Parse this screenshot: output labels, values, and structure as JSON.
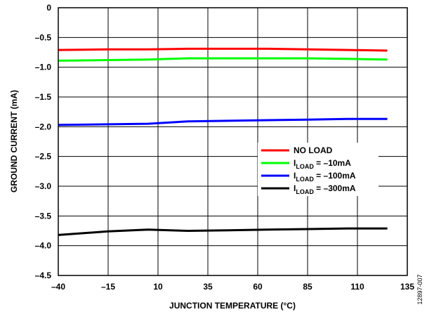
{
  "chart_data": {
    "type": "line",
    "xlabel": "JUNCTION TEMPERATURE (°C)",
    "ylabel": "GROUND CURRENT (mA)",
    "xlim": [
      -40,
      135
    ],
    "ylim": [
      -4.5,
      0
    ],
    "x_ticks": [
      -40,
      -15,
      10,
      35,
      60,
      85,
      110,
      135
    ],
    "x_tick_labels": [
      "–40",
      "–15",
      "10",
      "35",
      "60",
      "85",
      "110",
      "135"
    ],
    "y_ticks": [
      0,
      -0.5,
      -1.0,
      -1.5,
      -2.0,
      -2.5,
      -3.0,
      -3.5,
      -4.0,
      -4.5
    ],
    "y_tick_labels": [
      "0",
      "–0.5",
      "–1.0",
      "–1.5",
      "–2.0",
      "–2.5",
      "–3.0",
      "–3.5",
      "–4.0",
      "–4.5"
    ],
    "grid": true,
    "legend_position": "right",
    "x": [
      -40,
      -15,
      5,
      25,
      45,
      65,
      85,
      105,
      125
    ],
    "series": [
      {
        "name": "NO LOAD",
        "label_main": "NO LOAD",
        "label_sub": "",
        "label_rest": "",
        "color": "#ff0000",
        "values": [
          -0.71,
          -0.7,
          -0.7,
          -0.69,
          -0.69,
          -0.69,
          -0.7,
          -0.71,
          -0.72
        ]
      },
      {
        "name": "ILOAD = –10mA",
        "label_main": "I",
        "label_sub": "LOAD",
        "label_rest": " = –10mA",
        "color": "#00ff00",
        "values": [
          -0.89,
          -0.88,
          -0.87,
          -0.85,
          -0.85,
          -0.85,
          -0.85,
          -0.86,
          -0.87
        ]
      },
      {
        "name": "ILOAD = –100mA",
        "label_main": "I",
        "label_sub": "LOAD",
        "label_rest": " = –100mA",
        "color": "#0000ff",
        "values": [
          -1.97,
          -1.96,
          -1.95,
          -1.91,
          -1.9,
          -1.89,
          -1.88,
          -1.87,
          -1.87
        ]
      },
      {
        "name": "ILOAD = –300mA",
        "label_main": "I",
        "label_sub": "LOAD",
        "label_rest": " = –300mA",
        "color": "#000000",
        "values": [
          -3.82,
          -3.76,
          -3.73,
          -3.75,
          -3.74,
          -3.73,
          -3.72,
          -3.71,
          -3.71
        ]
      }
    ]
  },
  "figure_id": "12897-007"
}
